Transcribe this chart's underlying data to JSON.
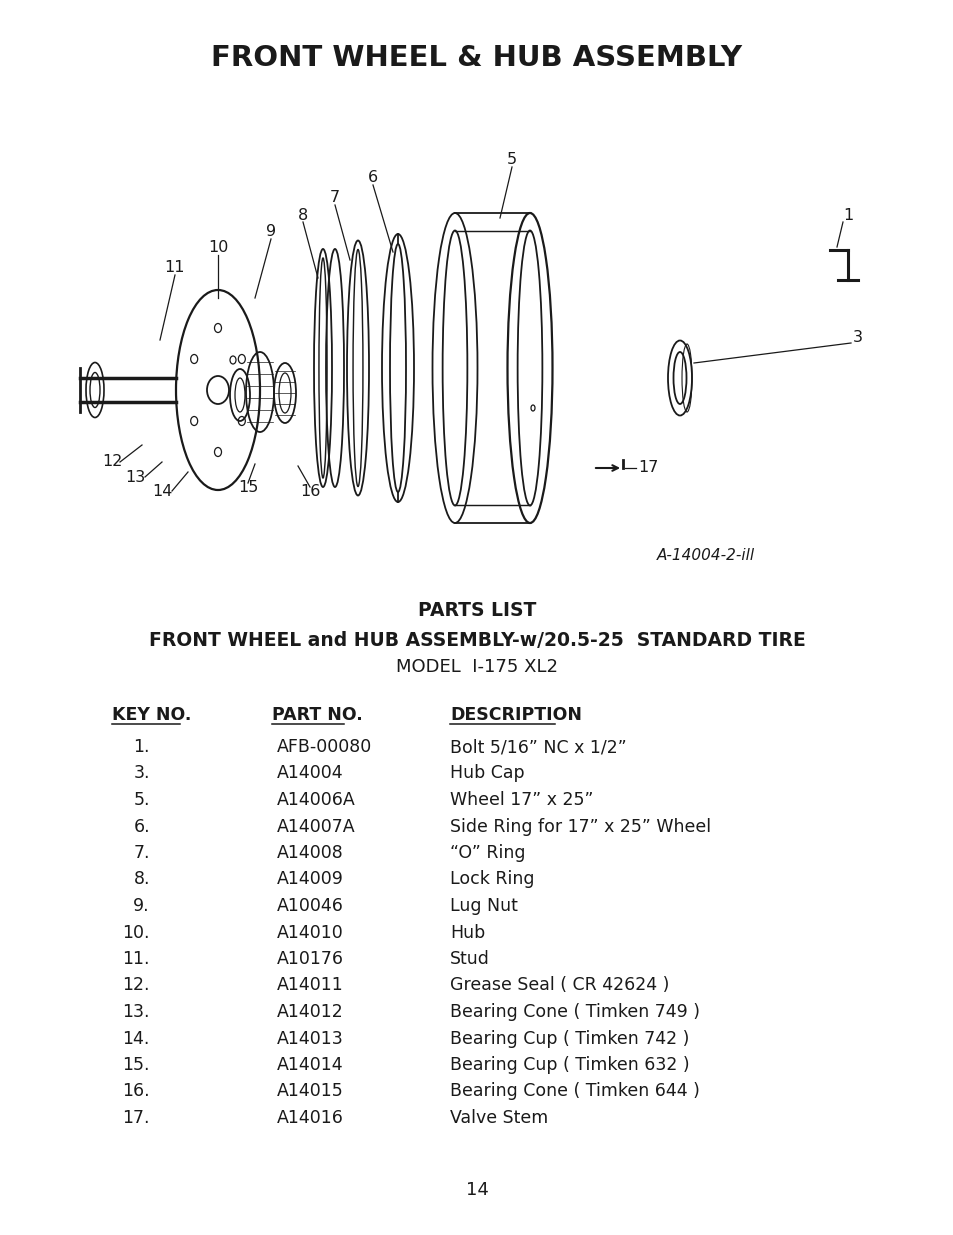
{
  "title": "FRONT WHEEL & HUB ASSEMBLY",
  "parts_list_title1": "PARTS LIST",
  "parts_list_title2": "FRONT WHEEL and HUB ASSEMBLY-w/20.5-25  STANDARD TIRE",
  "parts_list_title3": "MODEL  I-175 XL2",
  "diagram_ref": "A-14004-2-ill",
  "col_headers": [
    "KEY NO.",
    "PART NO.",
    "DESCRIPTION"
  ],
  "parts": [
    [
      "1.",
      "AFB-00080",
      "Bolt 5/16” NC x 1/2”"
    ],
    [
      "3.",
      "A14004",
      "Hub Cap"
    ],
    [
      "5.",
      "A14006A",
      "Wheel 17” x 25”"
    ],
    [
      "6.",
      "A14007A",
      "Side Ring for 17” x 25” Wheel"
    ],
    [
      "7.",
      "A14008",
      "“O” Ring"
    ],
    [
      "8.",
      "A14009",
      "Lock Ring"
    ],
    [
      "9.",
      "A10046",
      "Lug Nut"
    ],
    [
      "10.",
      "A14010",
      "Hub"
    ],
    [
      "11.",
      "A10176",
      "Stud"
    ],
    [
      "12.",
      "A14011",
      "Grease Seal ( CR 42624 )"
    ],
    [
      "13.",
      "A14012",
      "Bearing Cone ( Timken 749 )"
    ],
    [
      "14.",
      "A14013",
      "Bearing Cup ( Timken 742 )"
    ],
    [
      "15.",
      "A14014",
      "Bearing Cup ( Timken 632 )"
    ],
    [
      "16.",
      "A14015",
      "Bearing Cone ( Timken 644 )"
    ],
    [
      "17.",
      "A14016",
      "Valve Stem"
    ]
  ],
  "page_number": "14",
  "bg_color": "#ffffff",
  "text_color": "#1a1a1a",
  "diagram_color": "#1a1a1a"
}
